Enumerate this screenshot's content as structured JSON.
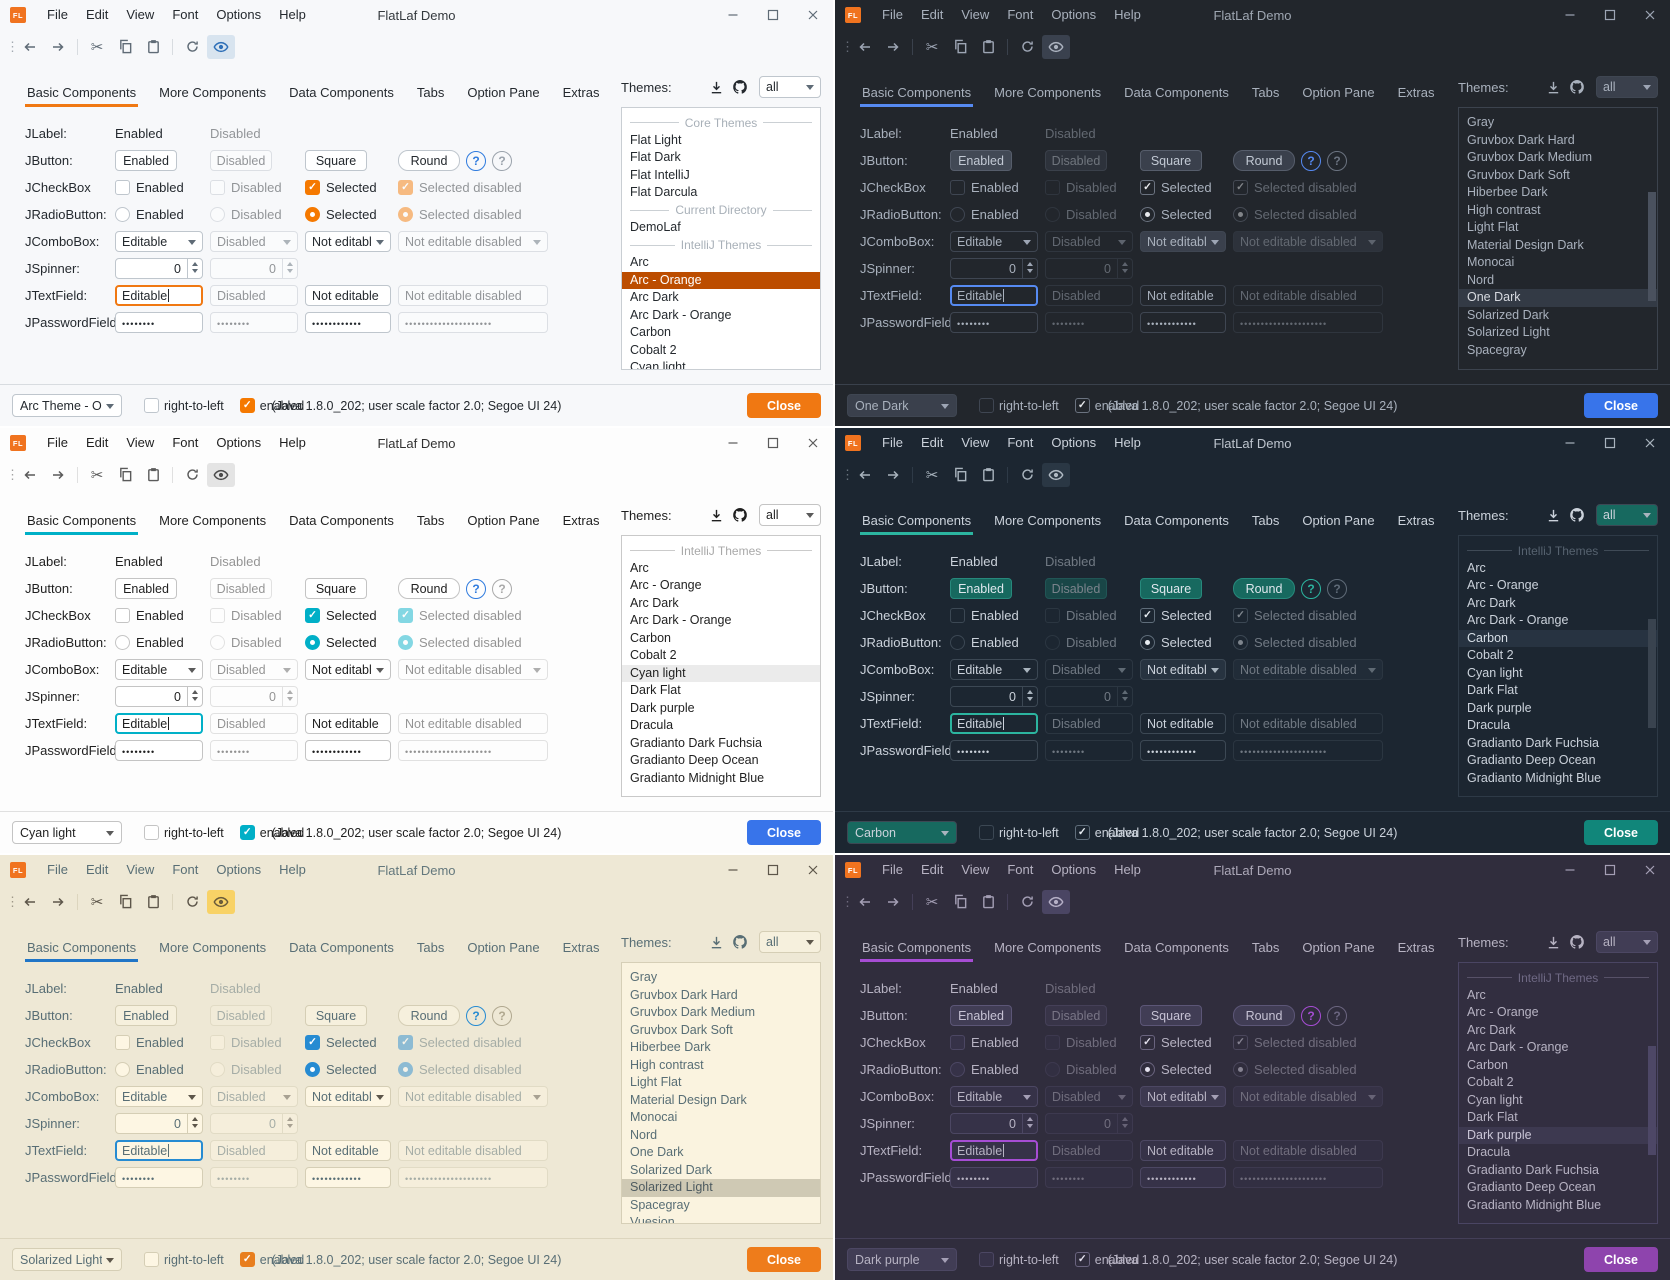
{
  "common": {
    "title": "FlatLaf Demo",
    "logo_text": "FL",
    "menus": [
      "File",
      "Edit",
      "View",
      "Font",
      "Options",
      "Help"
    ],
    "tabs": [
      "Basic Components",
      "More Components",
      "Data Components",
      "Tabs",
      "Option Pane",
      "Extras"
    ],
    "themes_label": "Themes:",
    "filter_value": "all",
    "rows": {
      "jlabel": {
        "label": "JLabel:",
        "enabled": "Enabled",
        "disabled": "Disabled"
      },
      "jbutton": {
        "label": "JButton:",
        "enabled": "Enabled",
        "disabled": "Disabled",
        "square": "Square",
        "round": "Round",
        "help": "?"
      },
      "jcheckbox": {
        "label": "JCheckBox",
        "enabled": "Enabled",
        "disabled": "Disabled",
        "selected": "Selected",
        "selected_disabled": "Selected disabled"
      },
      "jradio": {
        "label": "JRadioButton:",
        "enabled": "Enabled",
        "disabled": "Disabled",
        "selected": "Selected",
        "selected_disabled": "Selected disabled"
      },
      "jcombo": {
        "label": "JComboBox:",
        "editable": "Editable",
        "disabled": "Disabled",
        "noneditable": "Not editable",
        "noneditable_disabled": "Not editable disabled"
      },
      "jspinner": {
        "label": "JSpinner:",
        "value": "0",
        "value_disabled": "0"
      },
      "jtextfield": {
        "label": "JTextField:",
        "editable": "Editable",
        "disabled": "Disabled",
        "noneditable": "Not editable",
        "noneditable_disabled": "Not editable disabled"
      },
      "jpassword": {
        "label": "JPasswordField:",
        "p1": "••••••••",
        "p2": "••••••••",
        "p3": "••••••••••••",
        "p4": "•••••••••••••••••••••"
      }
    },
    "statusbar": {
      "rtl": "right-to-left",
      "enabled": "enabled",
      "status": "(Java 1.8.0_202;  user scale factor 2.0; Segoe UI 24)",
      "close": "Close"
    }
  },
  "windows": [
    {
      "name": "arc-orange",
      "theme_combo": "Arc Theme - O...",
      "selected": "Arc - Orange",
      "scrollbar": false,
      "list_scroll": 0,
      "list": [
        {
          "type": "sep",
          "label": "Core Themes"
        },
        {
          "type": "theme",
          "label": "Flat Light"
        },
        {
          "type": "theme",
          "label": "Flat Dark"
        },
        {
          "type": "theme",
          "label": "Flat IntelliJ"
        },
        {
          "type": "theme",
          "label": "Flat Darcula"
        },
        {
          "type": "sep",
          "label": "Current Directory"
        },
        {
          "type": "theme",
          "label": "DemoLaf"
        },
        {
          "type": "sep",
          "label": "IntelliJ Themes"
        },
        {
          "type": "theme",
          "label": "Arc"
        },
        {
          "type": "theme",
          "label": "Arc - Orange"
        },
        {
          "type": "theme",
          "label": "Arc Dark"
        },
        {
          "type": "theme",
          "label": "Arc Dark - Orange"
        },
        {
          "type": "theme",
          "label": "Carbon"
        },
        {
          "type": "theme",
          "label": "Cobalt 2"
        },
        {
          "type": "theme",
          "label": "Cyan light"
        }
      ],
      "colors": {
        "bg": "#F7F8FA",
        "fg": "#24292E",
        "muted": "#9AA2AB",
        "icon": "#5F6B76",
        "tabline": "#F07812",
        "btnbg": "#FFFFFF",
        "btnborder": "#BFC6CD",
        "btnfg": "#24292E",
        "btndefbg": "#FFFFFF",
        "fieldbg": "#FFFFFF",
        "fieldborder": "#BFC6CD",
        "combobg": "#FFFFFF",
        "focus": "#F07812",
        "checkbg": "#F57900",
        "checkborder": "#F57900",
        "checkfg": "#FFFFFF",
        "radiobg": "#F57900",
        "radiodot": "#FFFFFF",
        "sbcheckbg": "#F57900",
        "sbcheckborder": "#F57900",
        "sbcheckfg": "#FFFFFF",
        "listbg": "#FFFFFF",
        "listborder": "#C9CED3",
        "selbg": "#BC4D00",
        "selfg": "#FFFFFF",
        "sepfg": "#A8B0B8",
        "divider": "#D8DCE0",
        "closebg": "#F07812",
        "closefg": "#FFFFFF",
        "help": "#2F7BDE",
        "eyebg": "#D8E4EF",
        "eyefg": "#2E6FB7",
        "thumb": "transparent"
      }
    },
    {
      "name": "one-dark",
      "theme_combo": "One Dark",
      "selected": "One Dark",
      "scrollbar": true,
      "list_scroll": 0,
      "list": [
        {
          "type": "theme",
          "label": "Gray"
        },
        {
          "type": "theme",
          "label": "Gruvbox Dark Hard"
        },
        {
          "type": "theme",
          "label": "Gruvbox Dark Medium"
        },
        {
          "type": "theme",
          "label": "Gruvbox Dark Soft"
        },
        {
          "type": "theme",
          "label": "Hiberbee Dark"
        },
        {
          "type": "theme",
          "label": "High contrast"
        },
        {
          "type": "theme",
          "label": "Light Flat"
        },
        {
          "type": "theme",
          "label": "Material Design Dark"
        },
        {
          "type": "theme",
          "label": "Monocai"
        },
        {
          "type": "theme",
          "label": "Nord"
        },
        {
          "type": "theme",
          "label": "One Dark"
        },
        {
          "type": "theme",
          "label": "Solarized Dark"
        },
        {
          "type": "theme",
          "label": "Solarized Light"
        },
        {
          "type": "theme",
          "label": "Spacegray"
        }
      ],
      "colors": {
        "bg": "#22262C",
        "fg": "#A9B1BD",
        "muted": "#6B7380",
        "icon": "#9DA5B4",
        "tabline": "#568AF2",
        "btnbg": "#3A404C",
        "btnborder": "#565D6B",
        "btnfg": "#C2C9D4",
        "btndefbg": "#424955",
        "fieldbg": "#22262C",
        "fieldborder": "#3F4652",
        "combobg": "#3A404C",
        "focus": "#568AF2",
        "checkbg": "#22262C",
        "checkborder": "#6B7380",
        "checkfg": "#E8EAED",
        "radiobg": "#22262C",
        "radiodot": "#E8EAED",
        "sbcheckbg": "#22262C",
        "sbcheckborder": "#6B7380",
        "sbcheckfg": "#E8EAED",
        "listbg": "#22262C",
        "listborder": "#3C434E",
        "selbg": "#333A45",
        "selfg": "#D7DAE0",
        "sepfg": "#6B7380",
        "divider": "#3A414C",
        "closebg": "#3874EA",
        "closefg": "#FFFFFF",
        "help": "#568AF2",
        "eyebg": "#3A414E",
        "eyefg": "#ABB2BF",
        "thumb": "#4A515E"
      }
    },
    {
      "name": "cyan-light",
      "theme_combo": "Cyan light",
      "selected": "Cyan light",
      "scrollbar": false,
      "list_scroll": 0,
      "list": [
        {
          "type": "sep",
          "label": "IntelliJ Themes"
        },
        {
          "type": "theme",
          "label": "Arc"
        },
        {
          "type": "theme",
          "label": "Arc - Orange"
        },
        {
          "type": "theme",
          "label": "Arc Dark"
        },
        {
          "type": "theme",
          "label": "Arc Dark - Orange"
        },
        {
          "type": "theme",
          "label": "Carbon"
        },
        {
          "type": "theme",
          "label": "Cobalt 2"
        },
        {
          "type": "theme",
          "label": "Cyan light"
        },
        {
          "type": "theme",
          "label": "Dark Flat"
        },
        {
          "type": "theme",
          "label": "Dark purple"
        },
        {
          "type": "theme",
          "label": "Dracula"
        },
        {
          "type": "theme",
          "label": "Gradianto Dark Fuchsia"
        },
        {
          "type": "theme",
          "label": "Gradianto Deep Ocean"
        },
        {
          "type": "theme",
          "label": "Gradianto Midnight Blue"
        }
      ],
      "colors": {
        "bg": "#FDFDFD",
        "fg": "#1F1F1F",
        "muted": "#A9A9A9",
        "icon": "#5A5A5A",
        "tabline": "#00B0C7",
        "btnbg": "#FFFFFF",
        "btnborder": "#C4C4C4",
        "btnfg": "#1F1F1F",
        "btndefbg": "#FFFFFF",
        "fieldbg": "#FFFFFF",
        "fieldborder": "#C4C4C4",
        "combobg": "#FFFFFF",
        "focus": "#00B0C7",
        "checkbg": "#00AFC7",
        "checkborder": "#00AFC7",
        "checkfg": "#FFFFFF",
        "radiobg": "#00AFC7",
        "radiodot": "#FFFFFF",
        "sbcheckbg": "#00AFC7",
        "sbcheckborder": "#00AFC7",
        "sbcheckfg": "#FFFFFF",
        "listbg": "#FFFFFF",
        "listborder": "#C9C9C9",
        "selbg": "#EBEBEB",
        "selfg": "#1F1F1F",
        "sepfg": "#A9A9A9",
        "divider": "#E0E0E0",
        "closebg": "#3874EA",
        "closefg": "#FFFFFF",
        "help": "#2F7BDE",
        "eyebg": "#E4E4E4",
        "eyefg": "#4A4A4A",
        "thumb": "transparent"
      }
    },
    {
      "name": "carbon",
      "theme_combo": "Carbon",
      "selected": "Carbon",
      "scrollbar": true,
      "list_scroll": 0,
      "list": [
        {
          "type": "sep",
          "label": "IntelliJ Themes"
        },
        {
          "type": "theme",
          "label": "Arc"
        },
        {
          "type": "theme",
          "label": "Arc - Orange"
        },
        {
          "type": "theme",
          "label": "Arc Dark"
        },
        {
          "type": "theme",
          "label": "Arc Dark - Orange"
        },
        {
          "type": "theme",
          "label": "Carbon"
        },
        {
          "type": "theme",
          "label": "Cobalt 2"
        },
        {
          "type": "theme",
          "label": "Cyan light"
        },
        {
          "type": "theme",
          "label": "Dark Flat"
        },
        {
          "type": "theme",
          "label": "Dark purple"
        },
        {
          "type": "theme",
          "label": "Dracula"
        },
        {
          "type": "theme",
          "label": "Gradianto Dark Fuchsia"
        },
        {
          "type": "theme",
          "label": "Gradianto Deep Ocean"
        },
        {
          "type": "theme",
          "label": "Gradianto Midnight Blue"
        }
      ],
      "colors": {
        "bg": "#1C2631",
        "fg": "#CBD2DB",
        "muted": "#5F6B78",
        "icon": "#A9B4BE",
        "tabline": "#2CB5A0",
        "btnbg": "#17695F",
        "btnborder": "#27897C",
        "btnfg": "#DFE7ED",
        "btndefbg": "#17695F",
        "fieldbg": "#1C2631",
        "fieldborder": "#3C4854",
        "combobg": "#273340",
        "focus": "#2CB5A0",
        "checkbg": "#1C2631",
        "checkborder": "#5F6D7A",
        "checkfg": "#E8EDF2",
        "radiobg": "#1C2631",
        "radiodot": "#E8EDF2",
        "sbcheckbg": "#1C2631",
        "sbcheckborder": "#5F6D7A",
        "sbcheckfg": "#E8EDF2",
        "listbg": "#1C2631",
        "listborder": "#2E3A47",
        "selbg": "#273341",
        "selfg": "#D6DEE6",
        "sepfg": "#56626F",
        "divider": "#2E3A47",
        "closebg": "#11867A",
        "closefg": "#FFFFFF",
        "help": "#2CB5A0",
        "eyebg": "#2A3744",
        "eyefg": "#B0BAC4",
        "thumb": "#39434F"
      }
    },
    {
      "name": "solarized-light",
      "theme_combo": "Solarized Light",
      "selected": "Solarized Light",
      "scrollbar": false,
      "list_scroll": 8,
      "list": [
        {
          "type": "theme",
          "label": "Gray"
        },
        {
          "type": "theme",
          "label": "Gruvbox Dark Hard"
        },
        {
          "type": "theme",
          "label": "Gruvbox Dark Medium"
        },
        {
          "type": "theme",
          "label": "Gruvbox Dark Soft"
        },
        {
          "type": "theme",
          "label": "Hiberbee Dark"
        },
        {
          "type": "theme",
          "label": "High contrast"
        },
        {
          "type": "theme",
          "label": "Light Flat"
        },
        {
          "type": "theme",
          "label": "Material Design Dark"
        },
        {
          "type": "theme",
          "label": "Monocai"
        },
        {
          "type": "theme",
          "label": "Nord"
        },
        {
          "type": "theme",
          "label": "One Dark"
        },
        {
          "type": "theme",
          "label": "Solarized Dark"
        },
        {
          "type": "theme",
          "label": "Solarized Light"
        },
        {
          "type": "theme",
          "label": "Spacegray"
        },
        {
          "type": "theme",
          "label": "Vuesion"
        }
      ],
      "colors": {
        "bg": "#EEE8D5",
        "fg": "#586E75",
        "muted": "#B0A88F",
        "icon": "#5D564A",
        "tabline": "#2075C7",
        "btnbg": "#F6F0DD",
        "btnborder": "#D5CEB5",
        "btnfg": "#586E75",
        "btndefbg": "#F6F0DD",
        "fieldbg": "#FDF6E3",
        "fieldborder": "#D5CEB5",
        "combobg": "#FDF6E3",
        "focus": "#268BD2",
        "checkbg": "#268BD2",
        "checkborder": "#268BD2",
        "checkfg": "#FFFFFF",
        "radiobg": "#268BD2",
        "radiodot": "#FFFFFF",
        "sbcheckbg": "#E87E1E",
        "sbcheckborder": "#E87E1E",
        "sbcheckfg": "#FFFFFF",
        "listbg": "#FAF3DF",
        "listborder": "#D6CFB7",
        "selbg": "#CFC9B4",
        "selfg": "#4E5B60",
        "sepfg": "#B0A88F",
        "divider": "#DCD5BE",
        "closebg": "#EE7C1B",
        "closefg": "#FFFFFF",
        "help": "#268BD2",
        "eyebg": "#F8D266",
        "eyefg": "#6A5B3A",
        "thumb": "transparent"
      }
    },
    {
      "name": "dark-purple",
      "theme_combo": "Dark purple",
      "selected": "Dark purple",
      "scrollbar": true,
      "list_scroll": 0,
      "list": [
        {
          "type": "sep",
          "label": "IntelliJ Themes"
        },
        {
          "type": "theme",
          "label": "Arc"
        },
        {
          "type": "theme",
          "label": "Arc - Orange"
        },
        {
          "type": "theme",
          "label": "Arc Dark"
        },
        {
          "type": "theme",
          "label": "Arc Dark - Orange"
        },
        {
          "type": "theme",
          "label": "Carbon"
        },
        {
          "type": "theme",
          "label": "Cobalt 2"
        },
        {
          "type": "theme",
          "label": "Cyan light"
        },
        {
          "type": "theme",
          "label": "Dark Flat"
        },
        {
          "type": "theme",
          "label": "Dark purple"
        },
        {
          "type": "theme",
          "label": "Dracula"
        },
        {
          "type": "theme",
          "label": "Gradianto Dark Fuchsia"
        },
        {
          "type": "theme",
          "label": "Gradianto Deep Ocean"
        },
        {
          "type": "theme",
          "label": "Gradianto Midnight Blue"
        }
      ],
      "colors": {
        "bg": "#302D3D",
        "fg": "#B7B3C3",
        "muted": "#6B6580",
        "icon": "#A49FB5",
        "tabline": "#A64DD4",
        "btnbg": "#413D55",
        "btnborder": "#5C5677",
        "btnfg": "#C6C2D4",
        "btndefbg": "#413D55",
        "fieldbg": "#363248",
        "fieldborder": "#4C4763",
        "combobg": "#3D3950",
        "focus": "#A64DD4",
        "checkbg": "#302D3D",
        "checkborder": "#6A647F",
        "checkfg": "#E4E1EE",
        "radiobg": "#302D3D",
        "radiodot": "#E4E1EE",
        "sbcheckbg": "#302D3D",
        "sbcheckborder": "#6A647F",
        "sbcheckfg": "#E4E1EE",
        "listbg": "#322E40",
        "listborder": "#4A4563",
        "selbg": "#3D3950",
        "selfg": "#C9C5D6",
        "sepfg": "#6F6984",
        "divider": "#443F58",
        "closebg": "#8E44AD",
        "closefg": "#FFFFFF",
        "help": "#A64DD4",
        "eyebg": "#4A4563",
        "eyefg": "#B5AFC6",
        "thumb": "#4D4766"
      }
    }
  ]
}
